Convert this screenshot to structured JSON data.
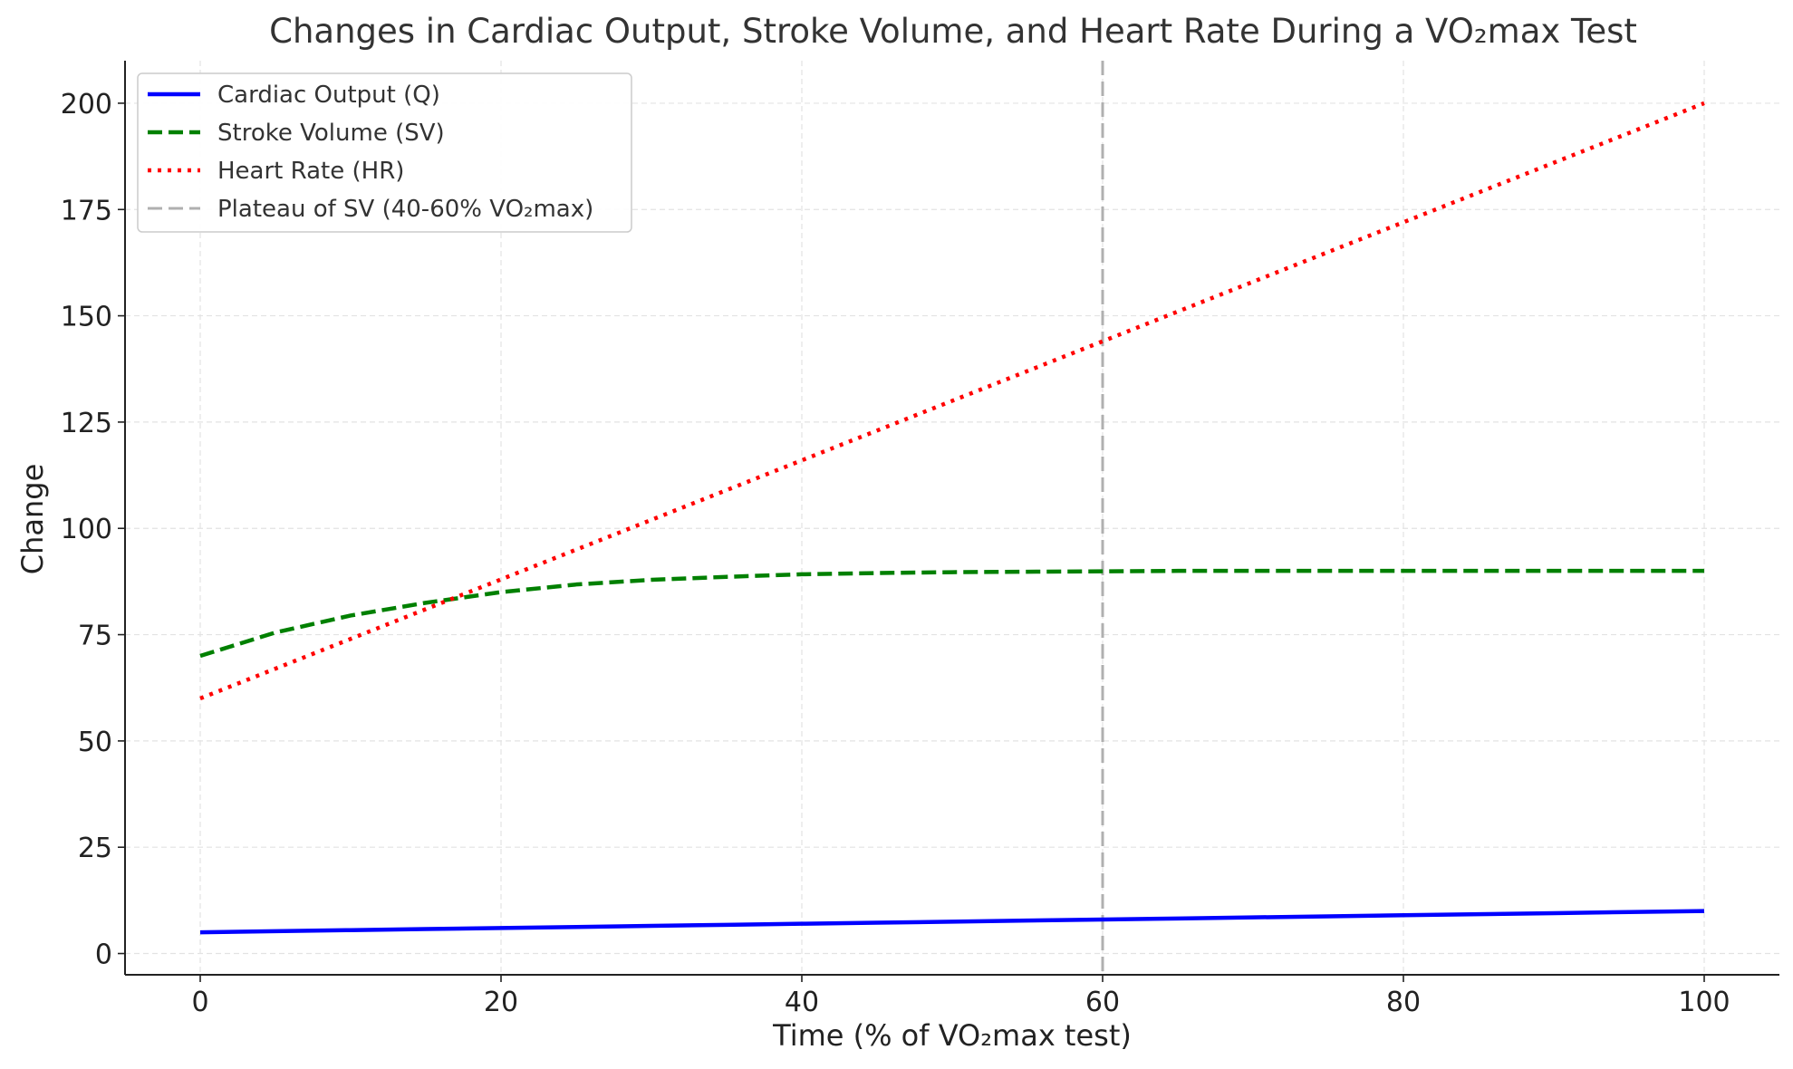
{
  "chart_data": {
    "type": "line",
    "title": "Changes in Cardiac Output, Stroke Volume, and Heart Rate During a VO₂max Test",
    "xlabel": "Time (% of VO₂max test)",
    "ylabel": "Change",
    "xlim": [
      -5,
      105
    ],
    "ylim": [
      -5,
      210
    ],
    "x_ticks": [
      0,
      20,
      40,
      60,
      80,
      100
    ],
    "y_ticks": [
      0,
      25,
      50,
      75,
      100,
      125,
      150,
      175,
      200
    ],
    "grid": true,
    "legend_position": "top-left",
    "x": [
      0,
      5,
      10,
      15,
      20,
      25,
      30,
      35,
      40,
      45,
      50,
      55,
      60,
      65,
      70,
      75,
      80,
      85,
      90,
      95,
      100
    ],
    "series": [
      {
        "name": "Cardiac Output (Q)",
        "color": "#0000ff",
        "style": "solid",
        "values": [
          5.0,
          5.25,
          5.5,
          5.75,
          6.0,
          6.25,
          6.5,
          6.75,
          7.0,
          7.25,
          7.5,
          7.75,
          8.0,
          8.25,
          8.5,
          8.75,
          9.0,
          9.25,
          9.5,
          9.75,
          10.0
        ]
      },
      {
        "name": "Stroke Volume (SV)",
        "color": "#008000",
        "style": "dashed",
        "values": [
          70.0,
          75.5,
          79.5,
          82.5,
          85.0,
          86.8,
          87.9,
          88.6,
          89.2,
          89.5,
          89.7,
          89.8,
          89.9,
          90.0,
          90.0,
          90.0,
          90.0,
          90.0,
          90.0,
          90.0,
          90.0
        ]
      },
      {
        "name": "Heart Rate (HR)",
        "color": "#ff0000",
        "style": "dotted",
        "values": [
          60,
          67,
          74,
          81,
          88,
          95,
          102,
          109,
          116,
          123,
          130,
          137,
          144,
          151,
          158,
          165,
          172,
          179,
          186,
          193,
          200
        ]
      }
    ],
    "reference_lines": [
      {
        "name": "Plateau of SV (40-60% VO₂max)",
        "x": 60,
        "color": "#b0b0b0",
        "style": "dashed"
      }
    ]
  }
}
